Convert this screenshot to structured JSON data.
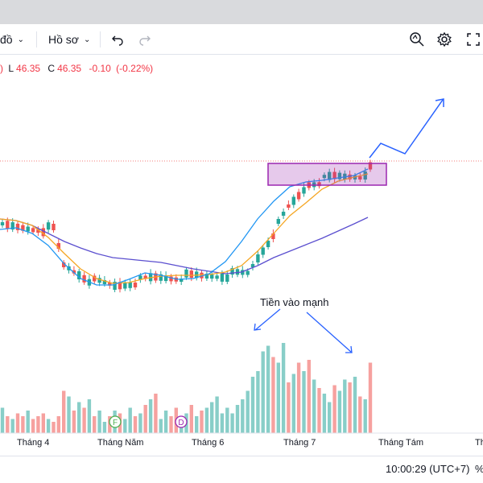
{
  "toolbar": {
    "chart_type_label": "đồ",
    "profile_label": "Hồ sơ",
    "undo_icon": "undo-icon",
    "redo_icon": "redo-icon",
    "zoom_icon": "quick-search-icon",
    "settings_icon": "gear-icon",
    "fullscreen_icon": "fullscreen-icon"
  },
  "ohlc": {
    "low_label": "L",
    "low_value": "46.35",
    "close_label": "C",
    "close_value": "46.35",
    "change": "-0.10",
    "change_pct": "(-0.22%)"
  },
  "colors": {
    "up": "#26a69a",
    "down": "#ef5350",
    "ma_fast": "#2196f3",
    "ma_mid": "#f5a623",
    "ma_slow": "#5b4fcf",
    "annotation": "#2962ff",
    "box": "#9c27b0"
  },
  "annotation": {
    "text": "Tiền vào mạnh"
  },
  "markers": [
    {
      "letter": "F",
      "color": "#4caf50"
    },
    {
      "letter": "D",
      "color": "#9c27b0"
    }
  ],
  "xaxis": {
    "labels": [
      "Tháng 4",
      "Tháng Năm",
      "Tháng 6",
      "Tháng 7",
      "Tháng Tám",
      "Th"
    ]
  },
  "status": {
    "clock": "10:00:29 (UTC+7)",
    "pct": "%"
  },
  "chart_data": {
    "type": "candlestick",
    "price_up": [
      true,
      false,
      true,
      false,
      false,
      true,
      false,
      false,
      false,
      true,
      false,
      false,
      false,
      true,
      false,
      true,
      false,
      true,
      false,
      true,
      true,
      false,
      true,
      false,
      true,
      true,
      false,
      true,
      false,
      true,
      false,
      true,
      true,
      false,
      false,
      true,
      true,
      false,
      true,
      false,
      true,
      true,
      true,
      true,
      true,
      true,
      true,
      true,
      true,
      true,
      true,
      true,
      true,
      false,
      true,
      true,
      false,
      true,
      false,
      true,
      false,
      true,
      false,
      true,
      true,
      false,
      true,
      true,
      false,
      true,
      false,
      true,
      false
    ],
    "volume": [
      18,
      12,
      10,
      14,
      12,
      16,
      10,
      12,
      14,
      10,
      8,
      12,
      30,
      26,
      16,
      22,
      18,
      24,
      12,
      16,
      8,
      12,
      16,
      14,
      10,
      18,
      12,
      14,
      20,
      24,
      28,
      10,
      16,
      12,
      18,
      10,
      14,
      20,
      12,
      16,
      18,
      22,
      26,
      14,
      18,
      14,
      20,
      24,
      30,
      40,
      44,
      58,
      62,
      54,
      50,
      64,
      36,
      42,
      50,
      44,
      52,
      38,
      32,
      28,
      22,
      34,
      30,
      38,
      36,
      40,
      26,
      24,
      50
    ]
  }
}
